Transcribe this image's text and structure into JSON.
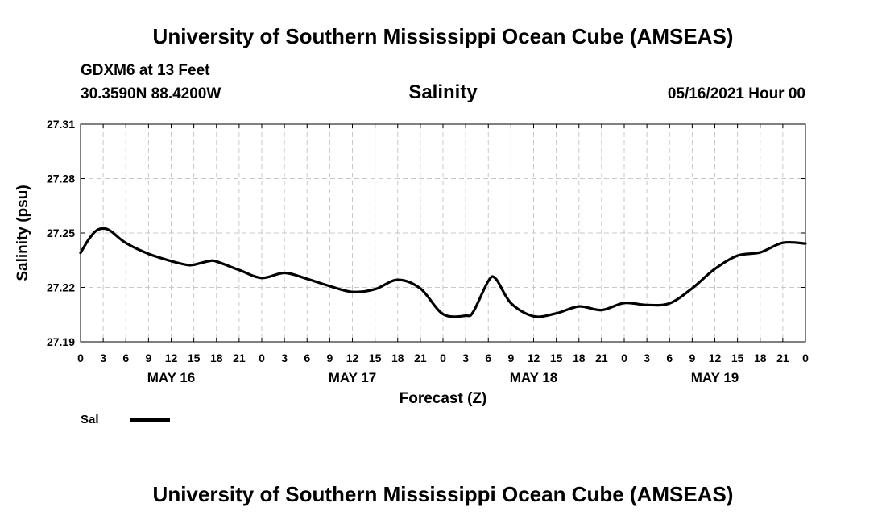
{
  "header": {
    "title": "University of Southern Mississippi Ocean Cube (AMSEAS)",
    "station": "GDXM6 at 13 Feet",
    "coords": "30.3590N  88.4200W",
    "datetime": "05/16/2021 Hour 00"
  },
  "footer": {
    "title": "University of Southern Mississippi Ocean Cube (AMSEAS)"
  },
  "chart_data": {
    "type": "line",
    "title": "Salinity",
    "xlabel": "Forecast (Z)",
    "ylabel": "Salinity (psu)",
    "xlim": [
      0,
      96
    ],
    "ylim": [
      27.19,
      27.31
    ],
    "yticks": [
      27.19,
      27.22,
      27.25,
      27.28,
      27.31
    ],
    "ytick_labels": [
      "27.19",
      "27.22",
      "27.25",
      "27.28",
      "27.31"
    ],
    "xticks": [
      0,
      3,
      6,
      9,
      12,
      15,
      18,
      21,
      24,
      27,
      30,
      33,
      36,
      39,
      42,
      45,
      48,
      51,
      54,
      57,
      60,
      63,
      66,
      69,
      72,
      75,
      78,
      81,
      84,
      87,
      90,
      93,
      96
    ],
    "xtick_labels": [
      "0",
      "3",
      "6",
      "9",
      "12",
      "15",
      "18",
      "21",
      "0",
      "3",
      "6",
      "9",
      "12",
      "15",
      "18",
      "21",
      "0",
      "3",
      "6",
      "9",
      "12",
      "15",
      "18",
      "21",
      "0",
      "3",
      "6",
      "9",
      "12",
      "15",
      "18",
      "21",
      "0"
    ],
    "day_labels": [
      {
        "hour": 12,
        "label": "MAY 16"
      },
      {
        "hour": 36,
        "label": "MAY 17"
      },
      {
        "hour": 60,
        "label": "MAY 18"
      },
      {
        "hour": 84,
        "label": "MAY 19"
      }
    ],
    "grid": true,
    "legend": {
      "position": "bottom-left",
      "entries": [
        "Sal"
      ]
    },
    "series": [
      {
        "name": "Sal",
        "color": "#000000",
        "x": [
          0,
          1,
          2,
          3,
          4,
          6,
          9,
          12,
          14,
          15,
          17,
          18,
          21,
          24,
          27,
          30,
          33,
          36,
          39,
          42,
          45,
          48,
          51,
          52,
          54,
          55,
          57,
          60,
          63,
          66,
          69,
          72,
          75,
          78,
          81,
          84,
          87,
          90,
          93,
          96
        ],
        "y": [
          27.239,
          27.246,
          27.251,
          27.2525,
          27.251,
          27.2445,
          27.2385,
          27.2345,
          27.2325,
          27.2325,
          27.2345,
          27.2343,
          27.2296,
          27.2252,
          27.228,
          27.2247,
          27.2207,
          27.2175,
          27.219,
          27.2242,
          27.2194,
          27.2053,
          27.2044,
          27.2065,
          27.2235,
          27.2247,
          27.2113,
          27.2041,
          27.2057,
          27.2095,
          27.2075,
          27.2114,
          27.2103,
          27.2112,
          27.2195,
          27.2302,
          27.2375,
          27.2393,
          27.2446,
          27.2442
        ]
      }
    ]
  }
}
